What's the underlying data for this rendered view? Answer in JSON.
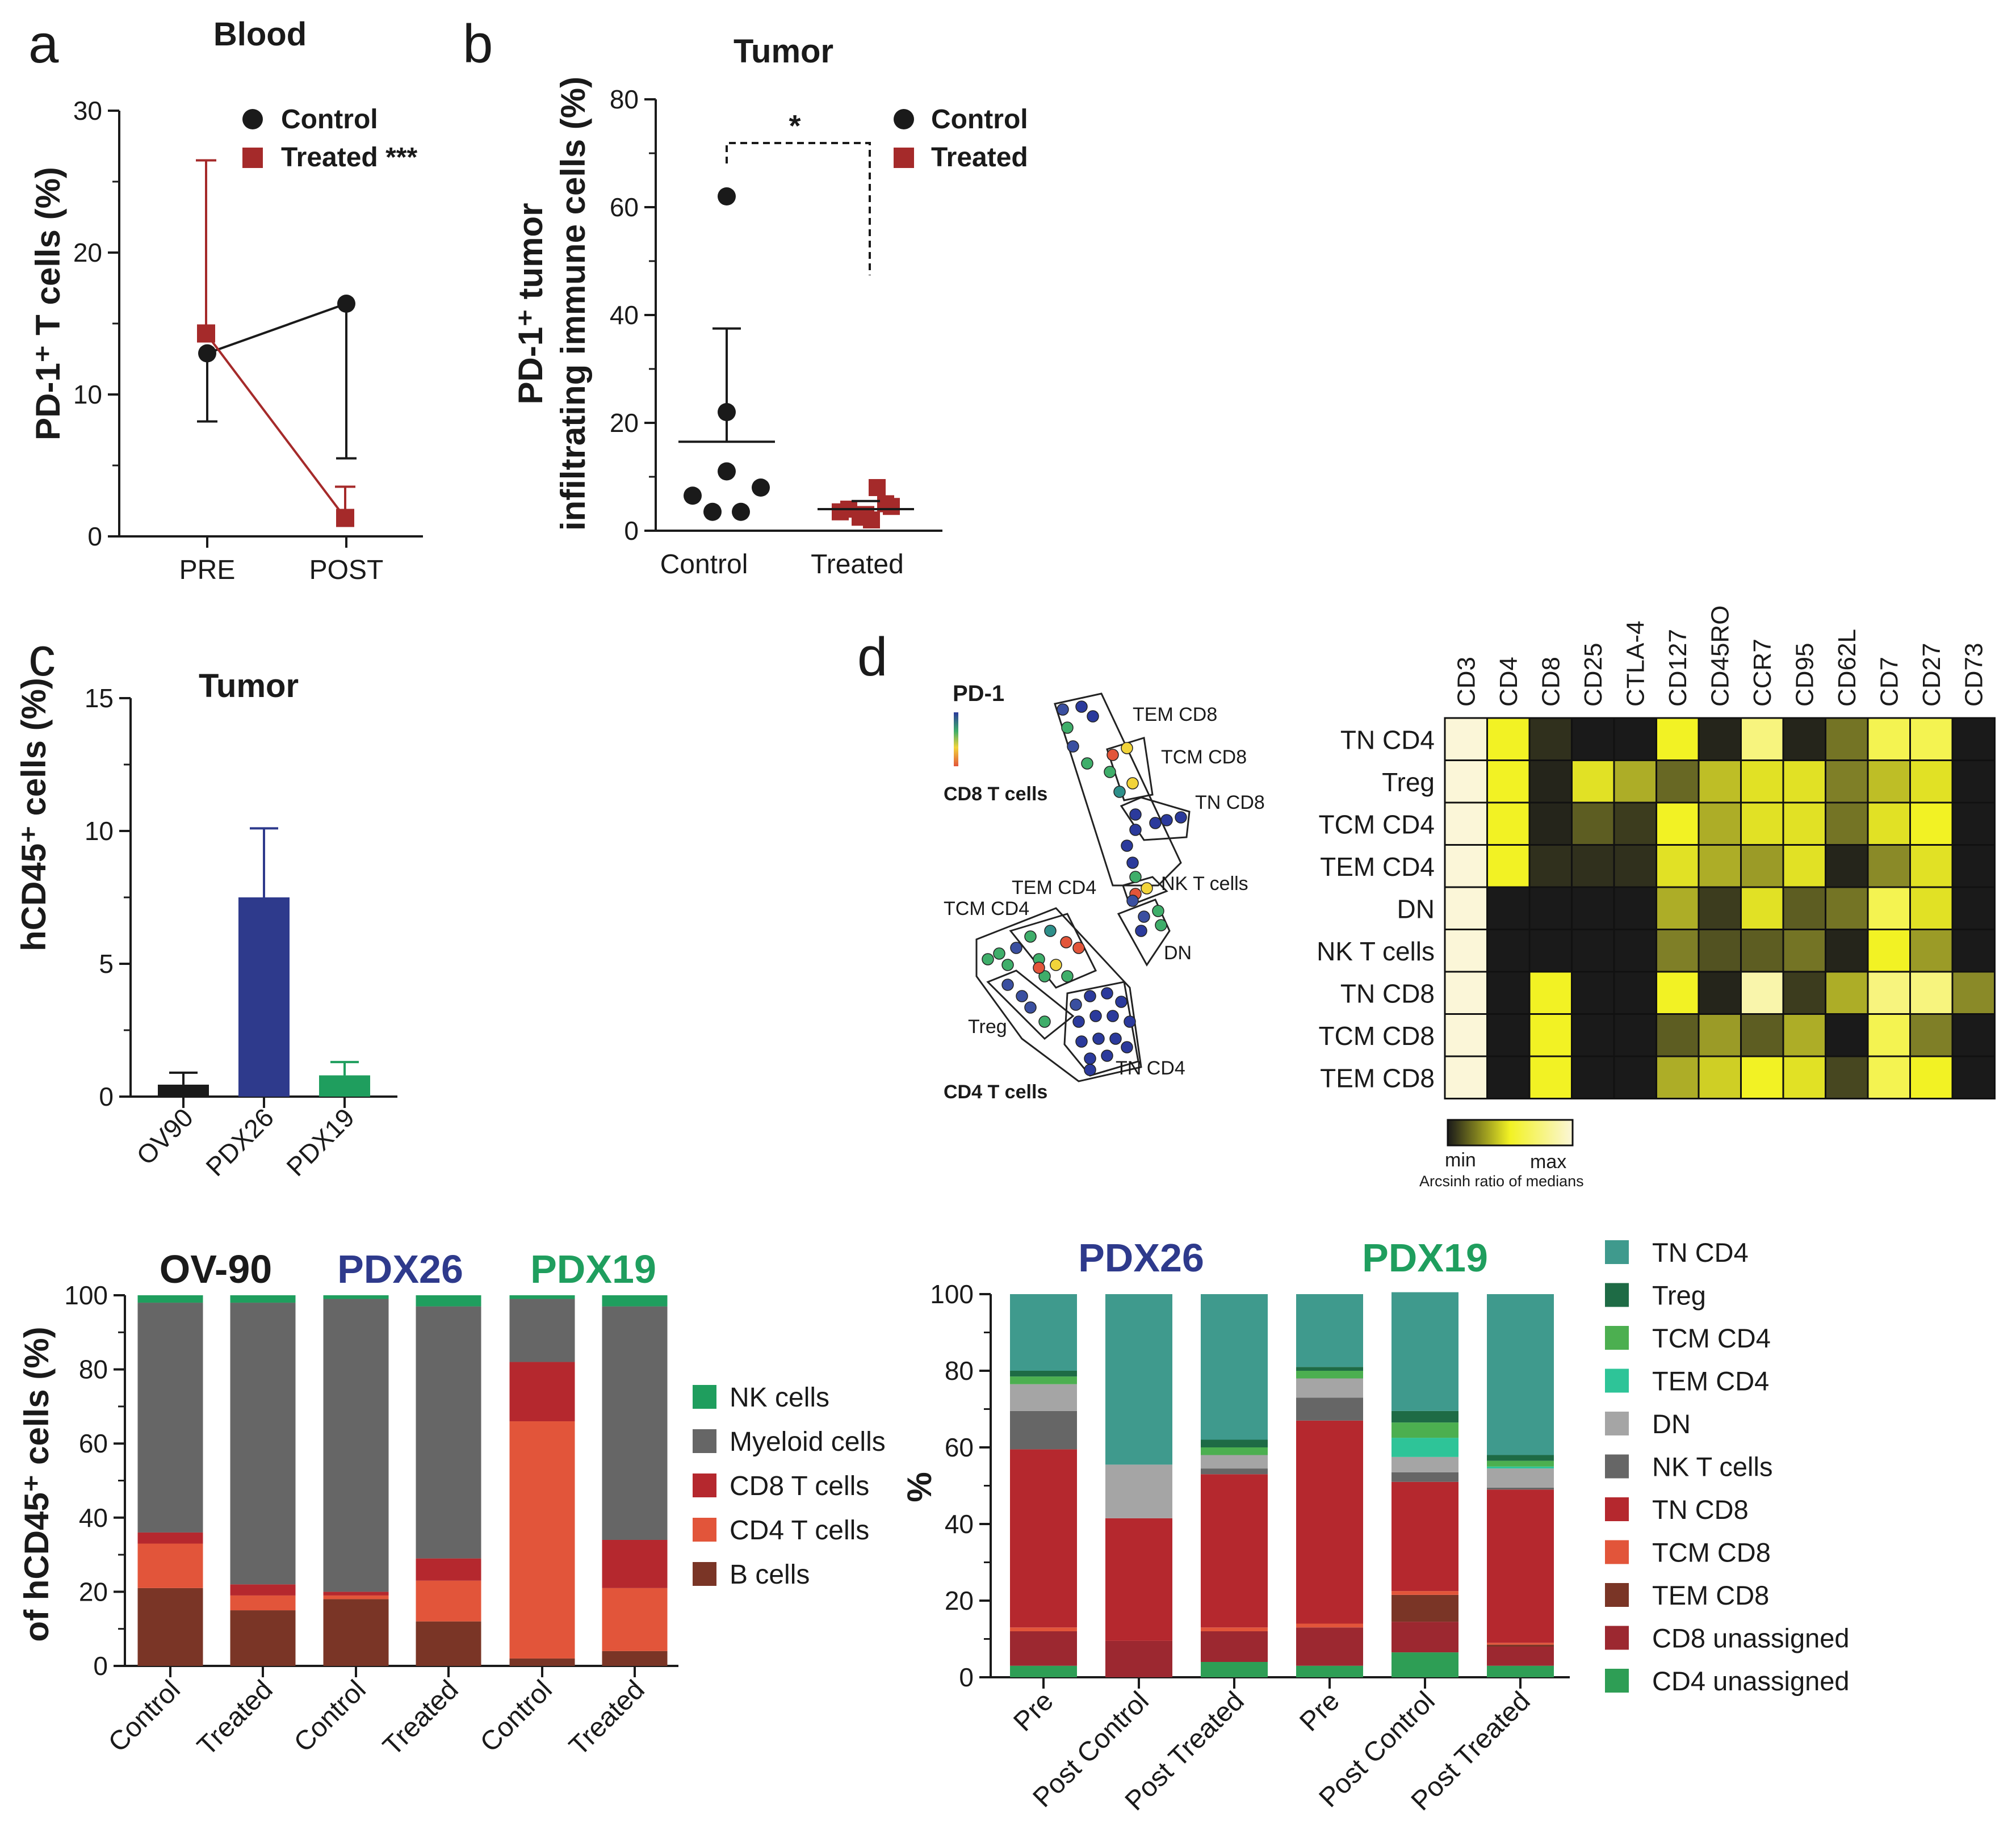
{
  "colors": {
    "control": "#1a1a1a",
    "treated": "#a52a2a",
    "ov90": "#1a1a1a",
    "pdx26": "#2e3a8c",
    "pdx19": "#1f9e5e",
    "nk": "#1f9e5e",
    "myeloid": "#666666",
    "cd8": "#b5282e",
    "cd4": "#e2553a",
    "bcell": "#7a3526",
    "tn_cd4": "#3f9a8d",
    "treg": "#1e6b45",
    "tcm_cd4": "#4caf50",
    "tem_cd4": "#2ec498",
    "dn": "#a5a5a5",
    "nkt": "#666666",
    "tn_cd8": "#b5282e",
    "tcm_cd8": "#e2553a",
    "tem_cd8": "#7a3526",
    "cd8_unassigned": "#9c2830",
    "cd4_unassigned": "#2e9e55"
  },
  "chart_data": [
    {
      "id": "a",
      "panel_letter": "a",
      "type": "line",
      "title": "Blood",
      "ylabel_lines": [
        "PD-1⁺ T cells (%)"
      ],
      "categories": [
        "PRE",
        "POST"
      ],
      "ylim": [
        0,
        30
      ],
      "yticks": [
        "0",
        "10",
        "20",
        "30"
      ],
      "series": [
        {
          "name": "Control",
          "legend_label": "Control",
          "marker": "circle",
          "values": [
            12.9,
            16.4
          ],
          "error_low": [
            8.1,
            5.5
          ],
          "error_high": [
            12.9,
            16.4
          ]
        },
        {
          "name": "Treated",
          "legend_label": "Treated ***",
          "marker": "square",
          "values": [
            14.3,
            1.3
          ],
          "error_low": [
            14.3,
            1.3
          ],
          "error_high": [
            26.5,
            3.5
          ]
        }
      ]
    },
    {
      "id": "b",
      "panel_letter": "b",
      "type": "scatter",
      "title": "Tumor",
      "ylabel_lines": [
        "PD-1⁺ tumor",
        "infiltrating immune cells (%)"
      ],
      "categories": [
        "Control",
        "Treated"
      ],
      "ylim": [
        0,
        80
      ],
      "yticks": [
        "0",
        "20",
        "40",
        "60",
        "80"
      ],
      "significance": "*",
      "series": [
        {
          "name": "Control",
          "marker": "circle",
          "points": [
            62,
            22,
            11,
            6.5,
            8,
            3.5,
            3.5
          ],
          "mean": 16.5,
          "sd_high": 37.5
        },
        {
          "name": "Treated",
          "marker": "square",
          "points": [
            8,
            5,
            4,
            3,
            2.5,
            4.5,
            3.5,
            2
          ],
          "mean": 4,
          "sd_high": 5.5
        }
      ]
    },
    {
      "id": "c",
      "panel_letter": "c",
      "type": "bar",
      "title": "Tumor",
      "ylabel_lines": [
        "hCD45⁺ cells (%)"
      ],
      "categories": [
        "OV90",
        "PDX26",
        "PDX19"
      ],
      "values": [
        0.45,
        7.5,
        0.8
      ],
      "error_high": [
        0.9,
        10.1,
        1.3
      ],
      "ylim": [
        0,
        15
      ],
      "yticks": [
        "0",
        "5",
        "10",
        "15"
      ]
    },
    {
      "id": "e",
      "type": "bar",
      "ylabel_lines": [
        "of hCD45⁺ cells (%)"
      ],
      "groups": [
        "OV-90",
        "PDX26",
        "PDX19"
      ],
      "categories": [
        "Control",
        "Treated",
        "Control",
        "Treated",
        "Control",
        "Treated"
      ],
      "ylim": [
        0,
        100
      ],
      "yticks": [
        "0",
        "20",
        "40",
        "60",
        "80",
        "100"
      ],
      "series": [
        {
          "name": "B cells",
          "values": [
            21,
            15,
            18,
            12,
            2,
            4
          ]
        },
        {
          "name": "CD4 T cells",
          "values": [
            12,
            4,
            1,
            11,
            64,
            17
          ]
        },
        {
          "name": "CD8 T cells",
          "values": [
            3,
            3,
            1,
            6,
            16,
            13
          ]
        },
        {
          "name": "Myeloid cells",
          "values": [
            62,
            76,
            79,
            68,
            17,
            63
          ]
        },
        {
          "name": "NK cells",
          "values": [
            2,
            2,
            1,
            3,
            1,
            3
          ]
        }
      ]
    },
    {
      "id": "f",
      "type": "bar",
      "ylabel_lines": [
        "%"
      ],
      "groups": [
        "PDX26",
        "PDX19"
      ],
      "categories": [
        "Pre",
        "Post Control",
        "Post Treated",
        "Pre",
        "Post Control",
        "Post Treated"
      ],
      "ylim": [
        0,
        100
      ],
      "yticks": [
        "0",
        "20",
        "40",
        "60",
        "80",
        "100"
      ],
      "series": [
        {
          "name": "CD4 unassigned",
          "values": [
            3,
            0,
            4,
            3,
            6.5,
            3
          ]
        },
        {
          "name": "CD8 unassigned",
          "values": [
            9,
            9.5,
            8,
            10,
            8,
            5
          ]
        },
        {
          "name": "TEM CD8",
          "values": [
            0,
            0,
            0,
            0,
            7,
            0.5
          ]
        },
        {
          "name": "TCM CD8",
          "values": [
            1,
            0,
            1,
            1,
            1,
            0.5
          ]
        },
        {
          "name": "TN CD8",
          "values": [
            46.5,
            32,
            40,
            53,
            28.5,
            40
          ]
        },
        {
          "name": "NK T cells",
          "values": [
            10,
            0,
            1.5,
            6,
            2.5,
            0.5
          ]
        },
        {
          "name": "DN",
          "values": [
            7,
            14,
            3.5,
            5,
            4,
            5
          ]
        },
        {
          "name": "TEM CD4",
          "values": [
            0,
            0,
            0,
            0,
            5,
            0.5
          ]
        },
        {
          "name": "TCM CD4",
          "values": [
            2,
            0,
            2,
            2,
            4,
            1.5
          ]
        },
        {
          "name": "Treg",
          "values": [
            1.5,
            0,
            2,
            1,
            3,
            1.5
          ]
        },
        {
          "name": "TN CD4",
          "values": [
            20,
            44.5,
            38,
            19,
            31,
            42
          ]
        }
      ]
    },
    {
      "id": "heatmap",
      "type": "heatmap",
      "columns": [
        "CD3",
        "CD4",
        "CD8",
        "CD25",
        "CTLA-4",
        "CD127",
        "CD45RO",
        "CCR7",
        "CD95",
        "CD62L",
        "CD7",
        "CD27",
        "CD73"
      ],
      "rows": [
        "TN CD4",
        "Treg",
        "TCM CD4",
        "TEM CD4",
        "DN",
        "NK T cells",
        "TN CD8",
        "TCM CD8",
        "TEM CD8"
      ],
      "values": [
        [
          1.0,
          0.8,
          0.1,
          0.0,
          0.0,
          0.8,
          0.05,
          0.9,
          0.05,
          0.4,
          0.85,
          0.85,
          0.0
        ],
        [
          1.0,
          0.8,
          0.05,
          0.75,
          0.6,
          0.35,
          0.65,
          0.75,
          0.75,
          0.45,
          0.65,
          0.75,
          0.0
        ],
        [
          1.0,
          0.8,
          0.05,
          0.3,
          0.15,
          0.8,
          0.6,
          0.75,
          0.75,
          0.4,
          0.75,
          0.8,
          0.0
        ],
        [
          1.0,
          0.8,
          0.1,
          0.1,
          0.1,
          0.75,
          0.6,
          0.55,
          0.75,
          0.05,
          0.5,
          0.75,
          0.0
        ],
        [
          1.0,
          0.0,
          0.0,
          0.0,
          0.0,
          0.6,
          0.15,
          0.75,
          0.3,
          0.4,
          0.85,
          0.75,
          0.0
        ],
        [
          1.0,
          0.0,
          0.0,
          0.0,
          0.0,
          0.45,
          0.25,
          0.3,
          0.4,
          0.05,
          0.8,
          0.55,
          0.0
        ],
        [
          1.0,
          0.0,
          0.8,
          0.0,
          0.0,
          0.8,
          0.05,
          0.95,
          0.15,
          0.6,
          0.9,
          0.9,
          0.5
        ],
        [
          1.0,
          0.0,
          0.8,
          0.0,
          0.0,
          0.3,
          0.55,
          0.3,
          0.6,
          0.0,
          0.85,
          0.45,
          0.0
        ],
        [
          1.0,
          0.0,
          0.8,
          0.0,
          0.0,
          0.6,
          0.7,
          0.8,
          0.75,
          0.2,
          0.85,
          0.8,
          0.0
        ]
      ],
      "scale_min_label": "min",
      "scale_max_label": "max",
      "scale_caption": "Arcsinh ratio of medians"
    }
  ],
  "panel_d": {
    "letter": "d",
    "marker_label": "PD-1",
    "cd8_group": "CD8 T cells",
    "cd4_group": "CD4 T cells",
    "cluster_labels": [
      "TEM CD8",
      "TCM CD8",
      "TN CD8",
      "NK T cells",
      "DN",
      "TEM CD4",
      "TCM CD4",
      "Treg",
      "TN CD4"
    ]
  }
}
